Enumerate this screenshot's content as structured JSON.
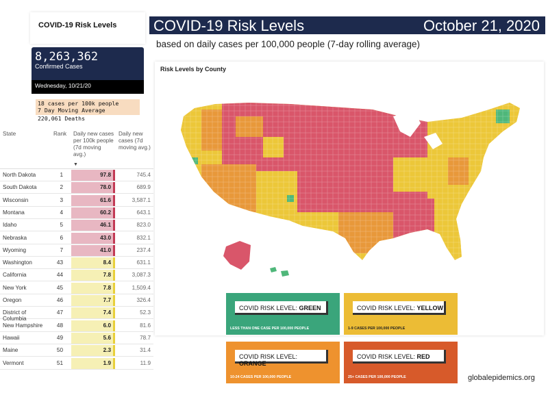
{
  "sidebar": {
    "title": "COVID-19 Risk Levels",
    "confirmed_count": "8,263,362",
    "confirmed_label": "Confirmed Cases",
    "date": "Wednesday, 10/21/20",
    "note_line1": "18 cases per 100k people",
    "note_line2": "7 Day Moving Average",
    "deaths": "220,061 Deaths"
  },
  "table": {
    "headers": {
      "state": "State",
      "rank": "Rank",
      "daily_new": "Daily new cases per 100k people (7d moving avg.)",
      "daily_deaths": "Daily new cases (7d moving avg.)"
    },
    "rows": [
      {
        "state": "North Dakota",
        "rank": "1",
        "value": "97.8",
        "deaths": "745.4",
        "level": "red"
      },
      {
        "state": "South Dakota",
        "rank": "2",
        "value": "78.0",
        "deaths": "689.9",
        "level": "red"
      },
      {
        "state": "Wisconsin",
        "rank": "3",
        "value": "61.6",
        "deaths": "3,587.1",
        "level": "red"
      },
      {
        "state": "Montana",
        "rank": "4",
        "value": "60.2",
        "deaths": "643.1",
        "level": "red"
      },
      {
        "state": "Idaho",
        "rank": "5",
        "value": "46.1",
        "deaths": "823.0",
        "level": "red"
      },
      {
        "state": "Nebraska",
        "rank": "6",
        "value": "43.0",
        "deaths": "832.1",
        "level": "red"
      },
      {
        "state": "Wyoming",
        "rank": "7",
        "value": "41.0",
        "deaths": "237.4",
        "level": "red"
      },
      {
        "state": "Washington",
        "rank": "43",
        "value": "8.4",
        "deaths": "631.1",
        "level": "yellow"
      },
      {
        "state": "California",
        "rank": "44",
        "value": "7.8",
        "deaths": "3,087.3",
        "level": "yellow"
      },
      {
        "state": "New York",
        "rank": "45",
        "value": "7.8",
        "deaths": "1,509.4",
        "level": "yellow"
      },
      {
        "state": "Oregon",
        "rank": "46",
        "value": "7.7",
        "deaths": "326.4",
        "level": "yellow"
      },
      {
        "state": "District of Columbia",
        "rank": "47",
        "value": "7.4",
        "deaths": "52.3",
        "level": "yellow"
      },
      {
        "state": "New Hampshire",
        "rank": "48",
        "value": "6.0",
        "deaths": "81.6",
        "level": "yellow"
      },
      {
        "state": "Hawaii",
        "rank": "49",
        "value": "5.6",
        "deaths": "78.7",
        "level": "yellow"
      },
      {
        "state": "Maine",
        "rank": "50",
        "value": "2.3",
        "deaths": "31.4",
        "level": "yellow"
      },
      {
        "state": "Vermont",
        "rank": "51",
        "value": "1.9",
        "deaths": "11.9",
        "level": "yellow"
      }
    ]
  },
  "header": {
    "title": "COVID-19 Risk Levels",
    "date": "October 21, 2020",
    "subtitle": "based on daily cases per 100,000 people (7-day rolling average)"
  },
  "map": {
    "title": "Risk Levels by County"
  },
  "legend": {
    "green": {
      "prefix": "COVID RISK LEVEL: ",
      "level": "GREEN",
      "desc": "LESS THAN ONE CASE PER 100,000 PEOPLE"
    },
    "yellow": {
      "prefix": "COVID RISK LEVEL: ",
      "level": "YELLOW",
      "desc": "1-9 CASES PER 100,000 PEOPLE"
    },
    "orange": {
      "prefix": "COVID RISK LEVEL: ",
      "level": "ORANGE",
      "desc": "10-24 CASES PER 100,000 PEOPLE"
    },
    "red": {
      "prefix": "COVID RISK LEVEL: ",
      "level": "RED",
      "desc": "25+ CASES PER 100,000 PEOPLE"
    }
  },
  "colors": {
    "red": "#d9566a",
    "red_bar": "#e8b7c2",
    "red_edge": "#c23a55",
    "yellow_bar": "#f6f0b5",
    "yellow_edge": "#e8cf3a",
    "orange": "#e8983a",
    "yellow": "#ecc739",
    "green": "#4fb77a",
    "navy": "#1d2a4d"
  },
  "footer": {
    "site": "globalepidemics.org"
  }
}
